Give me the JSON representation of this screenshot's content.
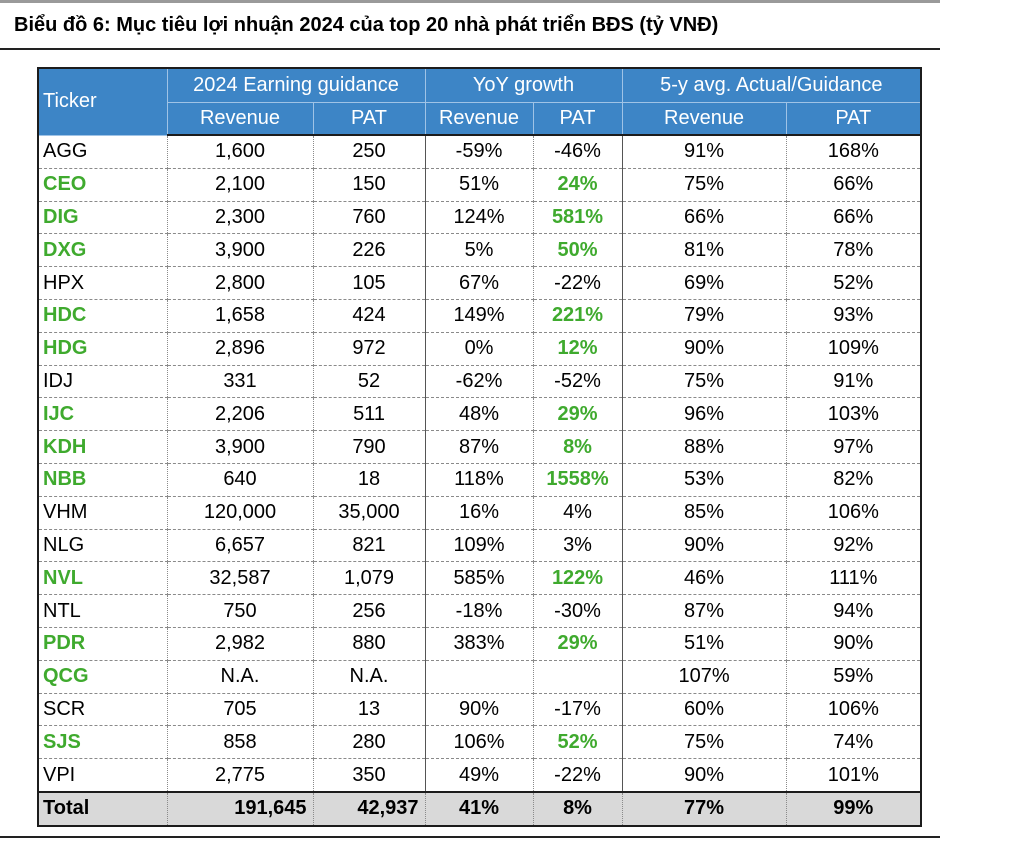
{
  "title": "Biểu đồ 6: Mục tiêu lợi nhuận 2024 của top 20 nhà phát triển BĐS (tỷ VNĐ)",
  "header": {
    "ticker": "Ticker",
    "groups": [
      "2024 Earning guidance",
      "YoY growth",
      "5-y avg. Actual/Guidance"
    ],
    "subcols": [
      "Revenue",
      "PAT",
      "Revenue",
      "PAT",
      "Revenue",
      "PAT"
    ]
  },
  "colors": {
    "header_bg": "#3d85c6",
    "highlight_green": "#3faa2e",
    "total_bg": "#d9d9d9"
  },
  "rows": [
    {
      "ticker": "AGG",
      "hl": false,
      "rev": "1,600",
      "pat": "250",
      "yoy_rev": "-59%",
      "yoy_pat": "-46%",
      "avg_rev": "91%",
      "avg_pat": "168%",
      "pat_hl": false
    },
    {
      "ticker": "CEO",
      "hl": true,
      "rev": "2,100",
      "pat": "150",
      "yoy_rev": "51%",
      "yoy_pat": "24%",
      "avg_rev": "75%",
      "avg_pat": "66%",
      "pat_hl": true
    },
    {
      "ticker": "DIG",
      "hl": true,
      "rev": "2,300",
      "pat": "760",
      "yoy_rev": "124%",
      "yoy_pat": "581%",
      "avg_rev": "66%",
      "avg_pat": "66%",
      "pat_hl": true
    },
    {
      "ticker": "DXG",
      "hl": true,
      "rev": "3,900",
      "pat": "226",
      "yoy_rev": "5%",
      "yoy_pat": "50%",
      "avg_rev": "81%",
      "avg_pat": "78%",
      "pat_hl": true
    },
    {
      "ticker": "HPX",
      "hl": false,
      "rev": "2,800",
      "pat": "105",
      "yoy_rev": "67%",
      "yoy_pat": "-22%",
      "avg_rev": "69%",
      "avg_pat": "52%",
      "pat_hl": false
    },
    {
      "ticker": "HDC",
      "hl": true,
      "rev": "1,658",
      "pat": "424",
      "yoy_rev": "149%",
      "yoy_pat": "221%",
      "avg_rev": "79%",
      "avg_pat": "93%",
      "pat_hl": true
    },
    {
      "ticker": "HDG",
      "hl": true,
      "rev": "2,896",
      "pat": "972",
      "yoy_rev": "0%",
      "yoy_pat": "12%",
      "avg_rev": "90%",
      "avg_pat": "109%",
      "pat_hl": true
    },
    {
      "ticker": "IDJ",
      "hl": false,
      "rev": "331",
      "pat": "52",
      "yoy_rev": "-62%",
      "yoy_pat": "-52%",
      "avg_rev": "75%",
      "avg_pat": "91%",
      "pat_hl": false
    },
    {
      "ticker": "IJC",
      "hl": true,
      "rev": "2,206",
      "pat": "511",
      "yoy_rev": "48%",
      "yoy_pat": "29%",
      "avg_rev": "96%",
      "avg_pat": "103%",
      "pat_hl": true
    },
    {
      "ticker": "KDH",
      "hl": true,
      "rev": "3,900",
      "pat": "790",
      "yoy_rev": "87%",
      "yoy_pat": "8%",
      "avg_rev": "88%",
      "avg_pat": "97%",
      "pat_hl": true
    },
    {
      "ticker": "NBB",
      "hl": true,
      "rev": "640",
      "pat": "18",
      "yoy_rev": "118%",
      "yoy_pat": "1558%",
      "avg_rev": "53%",
      "avg_pat": "82%",
      "pat_hl": true
    },
    {
      "ticker": "VHM",
      "hl": false,
      "rev": "120,000",
      "pat": "35,000",
      "yoy_rev": "16%",
      "yoy_pat": "4%",
      "avg_rev": "85%",
      "avg_pat": "106%",
      "pat_hl": false
    },
    {
      "ticker": "NLG",
      "hl": false,
      "rev": "6,657",
      "pat": "821",
      "yoy_rev": "109%",
      "yoy_pat": "3%",
      "avg_rev": "90%",
      "avg_pat": "92%",
      "pat_hl": false
    },
    {
      "ticker": "NVL",
      "hl": true,
      "rev": "32,587",
      "pat": "1,079",
      "yoy_rev": "585%",
      "yoy_pat": "122%",
      "avg_rev": "46%",
      "avg_pat": "111%",
      "pat_hl": true
    },
    {
      "ticker": "NTL",
      "hl": false,
      "rev": "750",
      "pat": "256",
      "yoy_rev": "-18%",
      "yoy_pat": "-30%",
      "avg_rev": "87%",
      "avg_pat": "94%",
      "pat_hl": false
    },
    {
      "ticker": "PDR",
      "hl": true,
      "rev": "2,982",
      "pat": "880",
      "yoy_rev": "383%",
      "yoy_pat": "29%",
      "avg_rev": "51%",
      "avg_pat": "90%",
      "pat_hl": true
    },
    {
      "ticker": "QCG",
      "hl": true,
      "rev": "N.A.",
      "pat": "N.A.",
      "yoy_rev": "",
      "yoy_pat": "",
      "avg_rev": "107%",
      "avg_pat": "59%",
      "pat_hl": false
    },
    {
      "ticker": "SCR",
      "hl": false,
      "rev": "705",
      "pat": "13",
      "yoy_rev": "90%",
      "yoy_pat": "-17%",
      "avg_rev": "60%",
      "avg_pat": "106%",
      "pat_hl": false
    },
    {
      "ticker": "SJS",
      "hl": true,
      "rev": "858",
      "pat": "280",
      "yoy_rev": "106%",
      "yoy_pat": "52%",
      "avg_rev": "75%",
      "avg_pat": "74%",
      "pat_hl": true
    },
    {
      "ticker": "VPI",
      "hl": false,
      "rev": "2,775",
      "pat": "350",
      "yoy_rev": "49%",
      "yoy_pat": "-22%",
      "avg_rev": "90%",
      "avg_pat": "101%",
      "pat_hl": false
    }
  ],
  "total": {
    "label": "Total",
    "rev": "191,645",
    "pat": "42,937",
    "yoy_rev": "41%",
    "yoy_pat": "8%",
    "avg_rev": "77%",
    "avg_pat": "99%"
  }
}
